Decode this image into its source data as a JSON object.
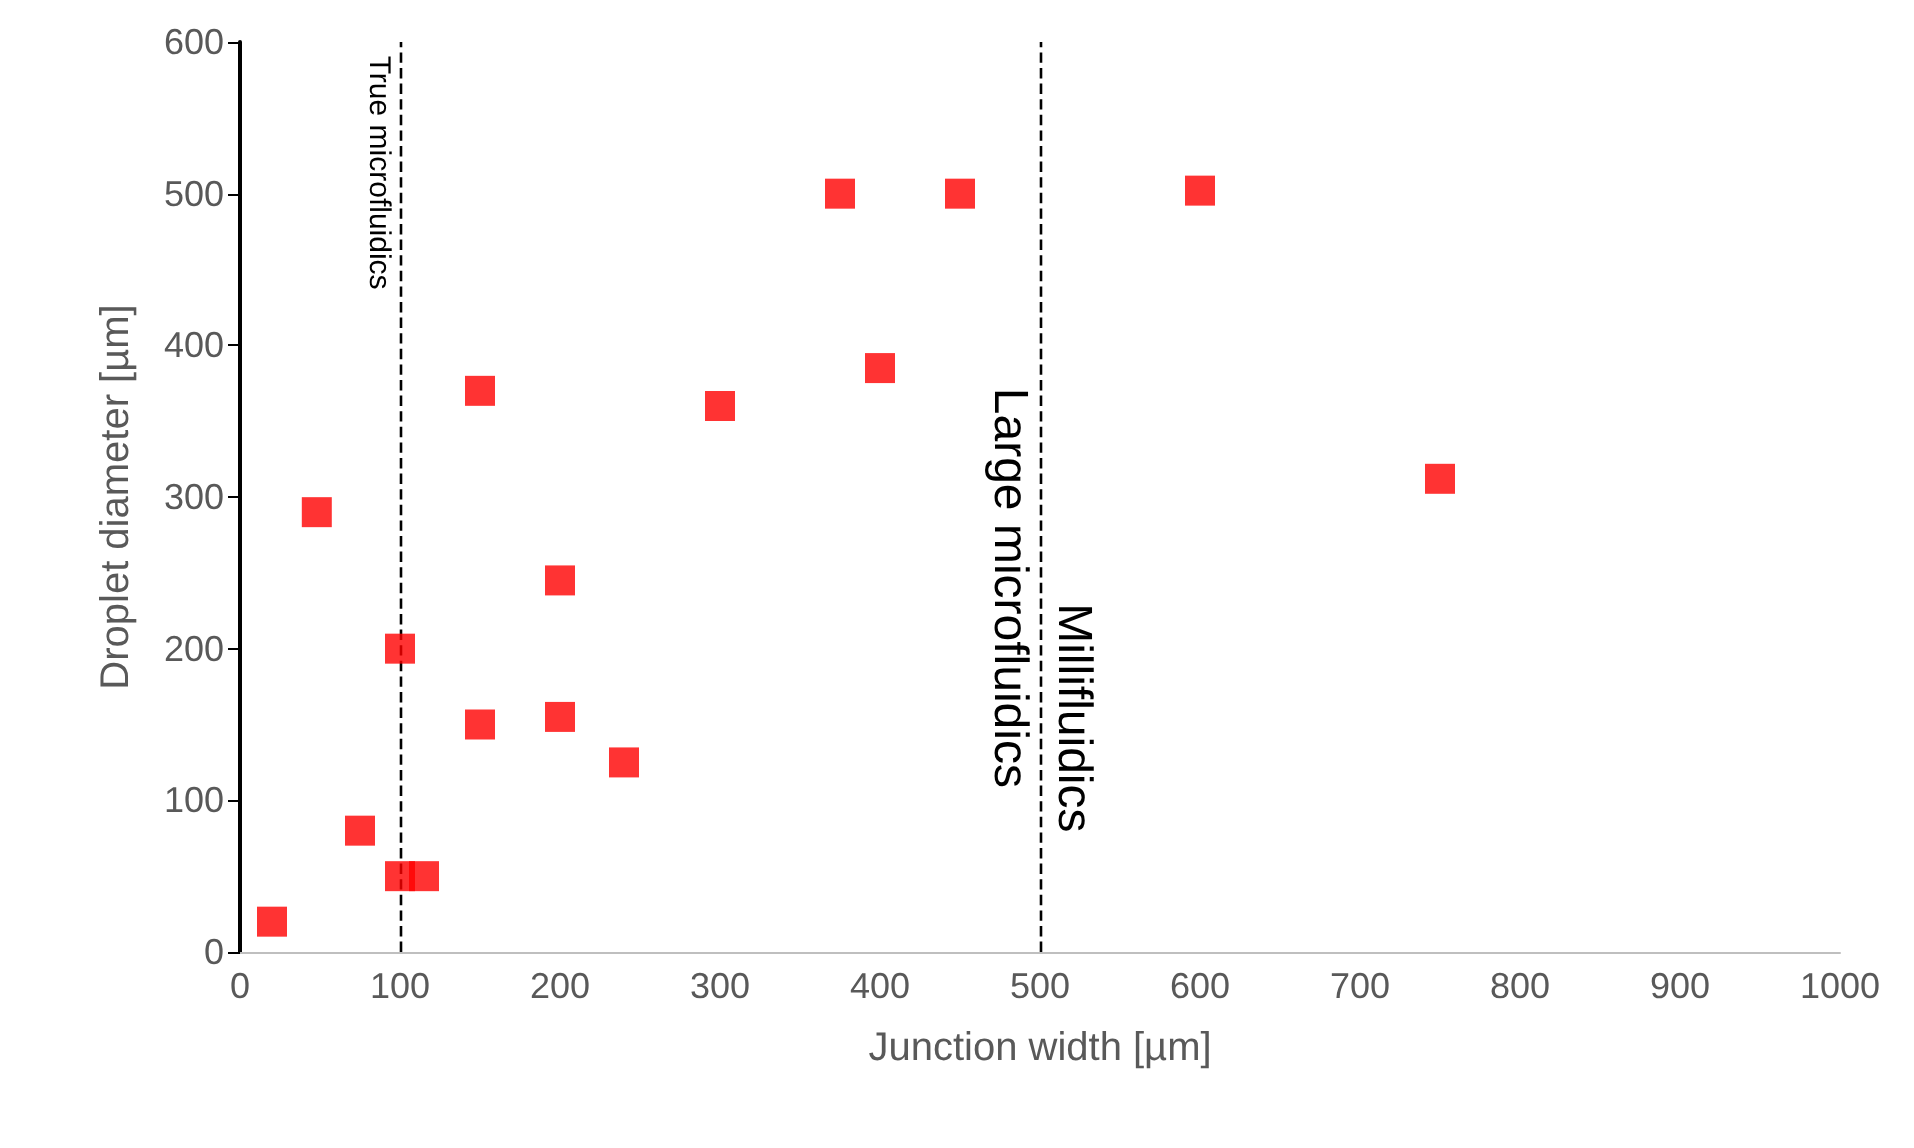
{
  "chart_data": {
    "type": "scatter",
    "xlabel": "Junction width [µm]",
    "ylabel": "Droplet diameter [µm]",
    "x": [
      20,
      48,
      75,
      100,
      115,
      100,
      150,
      150,
      200,
      200,
      240,
      300,
      375,
      400,
      450,
      600,
      750
    ],
    "values": [
      20,
      290,
      80,
      50,
      50,
      200,
      370,
      150,
      245,
      155,
      125,
      360,
      500,
      385,
      500,
      502,
      312
    ],
    "color": "#ff0000",
    "marker": "square",
    "xlim": [
      0,
      1000
    ],
    "xticks": [
      0,
      100,
      200,
      300,
      400,
      500,
      600,
      700,
      800,
      900,
      1000
    ],
    "ylim": [
      0,
      600
    ],
    "yticks": [
      0,
      100,
      200,
      300,
      400,
      500,
      600
    ],
    "grid": false,
    "ref_lines": [
      {
        "axis": "x",
        "value": 100,
        "label": "True microfluidics",
        "color": "#000000",
        "line_style": "dashed"
      },
      {
        "axis": "x",
        "value": 500,
        "label": "Large microfluidics",
        "color": "#000000",
        "line_style": "dashed"
      }
    ],
    "annotations": [
      {
        "text": "Millifluidics",
        "x": 500,
        "y": 230
      }
    ]
  }
}
